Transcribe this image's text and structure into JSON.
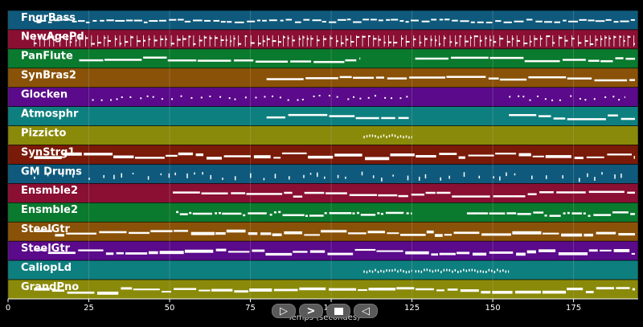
{
  "chart_data": {
    "type": "piano-roll",
    "xlabel": "Temps (secondes)",
    "xlim": [
      0,
      195
    ],
    "xticks": [
      0,
      25,
      50,
      75,
      100,
      125,
      150,
      175
    ],
    "grid": true,
    "tracks": [
      {
        "name": "FngrBass",
        "color": "#0f5a7c",
        "style": "bass",
        "segments": [
          [
            8,
            194
          ]
        ]
      },
      {
        "name": "NewAgePd",
        "color": "#8a0f33",
        "style": "dense",
        "segments": [
          [
            8,
            194
          ]
        ]
      },
      {
        "name": "PanFlute",
        "color": "#0a7a2e",
        "style": "sustain",
        "segments": [
          [
            22,
            109
          ],
          [
            126,
            194
          ]
        ]
      },
      {
        "name": "SynBras2",
        "color": "#8a5208",
        "style": "sustain",
        "segments": [
          [
            80,
            194
          ]
        ]
      },
      {
        "name": "Glocken",
        "color": "#5a0a8a",
        "style": "dots",
        "segments": [
          [
            26,
            124
          ],
          [
            155,
            191
          ]
        ]
      },
      {
        "name": "Atmosphr",
        "color": "#0e7f7f",
        "style": "sustain",
        "segments": [
          [
            80,
            124
          ],
          [
            155,
            194
          ]
        ]
      },
      {
        "name": "Pizzicto",
        "color": "#8a8a0a",
        "style": "pizz",
        "segments": [
          [
            110,
            125
          ]
        ]
      },
      {
        "name": "SynStrg1",
        "color": "#7a1a08",
        "style": "thick",
        "segments": [
          [
            8,
            194
          ]
        ]
      },
      {
        "name": "GM Drums",
        "color": "#0f5a7c",
        "style": "drums",
        "segments": [
          [
            8,
            191
          ]
        ]
      },
      {
        "name": "Ensmble2",
        "color": "#8a0f33",
        "style": "sustain",
        "segments": [
          [
            51,
            194
          ]
        ]
      },
      {
        "name": "Ensmble2",
        "color": "#0a7a2e",
        "style": "mixed",
        "segments": [
          [
            52,
            125
          ],
          [
            142,
            194
          ]
        ]
      },
      {
        "name": "SteelGtr",
        "color": "#8a5208",
        "style": "thick",
        "segments": [
          [
            8,
            194
          ]
        ]
      },
      {
        "name": "SteelGtr",
        "color": "#5a0a8a",
        "style": "thick",
        "segments": [
          [
            8,
            194
          ]
        ]
      },
      {
        "name": "CaliopLd",
        "color": "#0e7f7f",
        "style": "pizz",
        "segments": [
          [
            110,
            125
          ],
          [
            126,
            155
          ]
        ]
      },
      {
        "name": "GrandPno",
        "color": "#8a8a0a",
        "style": "thick",
        "segments": [
          [
            8,
            194
          ]
        ]
      }
    ]
  },
  "controls": {
    "play_label": "▷",
    "forward_label": ">",
    "stop_label": "",
    "back_label": "◁"
  },
  "colors": {
    "background": "#000000",
    "note": "#ffffff",
    "grid": "#b0b0b0"
  }
}
